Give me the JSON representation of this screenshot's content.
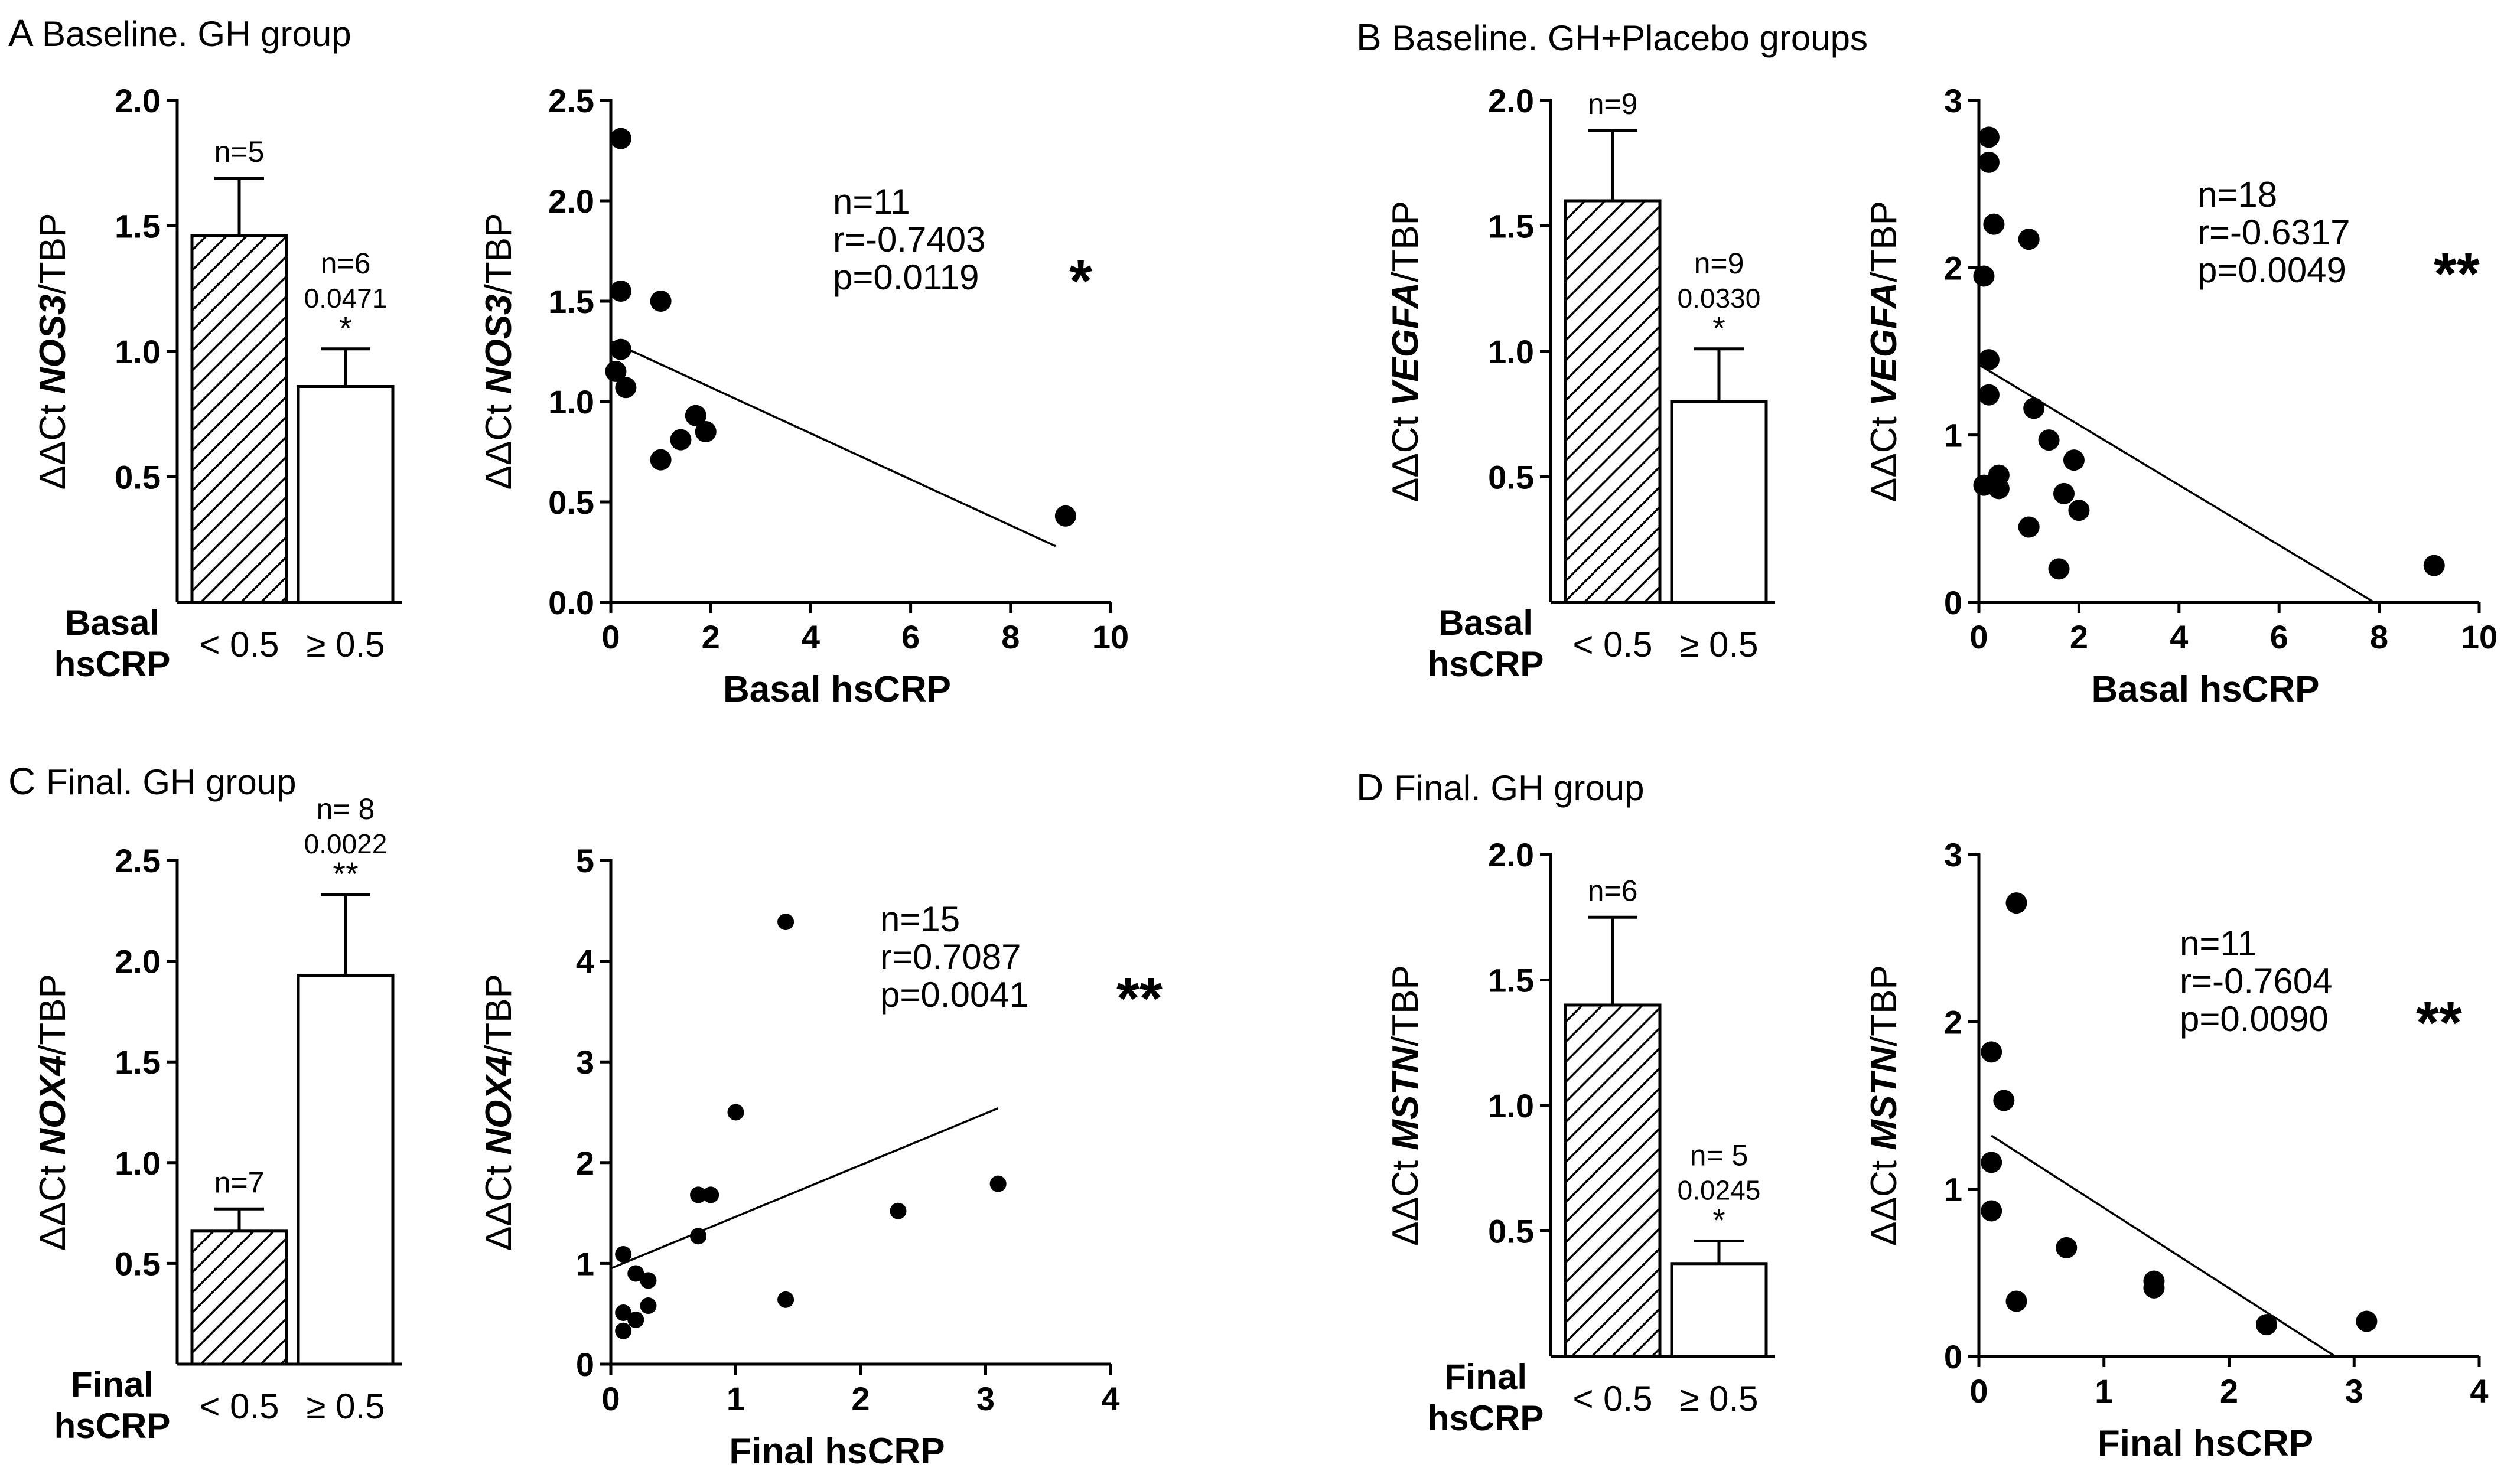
{
  "chart_data": [
    {
      "panel": "A",
      "heading": "Baseline. GH group",
      "gene": "NOS3",
      "bar": {
        "type": "bar",
        "ylabel_prefix": "ΔΔCt ",
        "ylabel_suffix": "/TBP",
        "xgroup_label": [
          "Basal",
          "hsCRP"
        ],
        "categories": [
          "< 0.5",
          "≥ 0.5"
        ],
        "values": [
          1.46,
          0.86
        ],
        "errors": [
          0.23,
          0.15
        ],
        "n_labels": [
          "n=5",
          "n=6"
        ],
        "p_label": "0.0471",
        "stars": "*",
        "ylim": [
          0,
          2.0
        ],
        "yticks": [
          "0.5",
          "1.0",
          "1.5",
          "2.0"
        ]
      },
      "scatter": {
        "type": "scatter",
        "ylabel_prefix": "ΔΔCt ",
        "ylabel_suffix": "/TBP",
        "xlabel": "Basal hsCRP",
        "xlim": [
          0,
          10
        ],
        "ylim": [
          0,
          2.5
        ],
        "xticks": [
          "0",
          "2",
          "4",
          "6",
          "8",
          "10"
        ],
        "yticks": [
          "0.0",
          "0.5",
          "1.0",
          "1.5",
          "2.0",
          "2.5"
        ],
        "points": [
          [
            0.2,
            2.31
          ],
          [
            0.2,
            1.55
          ],
          [
            0.2,
            1.26
          ],
          [
            0.1,
            1.15
          ],
          [
            0.3,
            1.07
          ],
          [
            1.0,
            1.5
          ],
          [
            1.0,
            0.71
          ],
          [
            1.4,
            0.81
          ],
          [
            1.7,
            0.93
          ],
          [
            1.9,
            0.85
          ],
          [
            9.1,
            0.43
          ]
        ],
        "fit": [
          [
            0.0,
            1.3
          ],
          [
            8.9,
            0.28
          ]
        ],
        "stats": [
          "n=11",
          "r=-0.7403",
          "p=0.0119"
        ],
        "stars": "*"
      }
    },
    {
      "panel": "B",
      "heading": "Baseline. GH+Placebo groups",
      "gene": "VEGFA",
      "bar": {
        "type": "bar",
        "ylabel_prefix": "ΔΔCt ",
        "ylabel_suffix": "/TBP",
        "xgroup_label": [
          "Basal",
          "hsCRP"
        ],
        "categories": [
          "< 0.5",
          "≥ 0.5"
        ],
        "values": [
          1.6,
          0.8
        ],
        "errors": [
          0.28,
          0.21
        ],
        "n_labels": [
          "n=9",
          "n=9"
        ],
        "p_label": "0.0330",
        "stars": "*",
        "ylim": [
          0,
          2.0
        ],
        "yticks": [
          "0.5",
          "1.0",
          "1.5",
          "2.0"
        ]
      },
      "scatter": {
        "type": "scatter",
        "ylabel_prefix": "ΔΔCt ",
        "ylabel_suffix": "/TBP",
        "xlabel": "Basal hsCRP",
        "xlim": [
          0,
          10
        ],
        "ylim": [
          0,
          3
        ],
        "xticks": [
          "0",
          "2",
          "4",
          "6",
          "8",
          "10"
        ],
        "yticks": [
          "0",
          "1",
          "2",
          "3"
        ],
        "points": [
          [
            0.2,
            2.78
          ],
          [
            0.2,
            2.63
          ],
          [
            0.3,
            2.26
          ],
          [
            1.0,
            2.17
          ],
          [
            0.1,
            1.95
          ],
          [
            0.2,
            1.45
          ],
          [
            0.2,
            1.24
          ],
          [
            1.1,
            1.16
          ],
          [
            1.4,
            0.97
          ],
          [
            1.9,
            0.85
          ],
          [
            0.4,
            0.76
          ],
          [
            0.1,
            0.7
          ],
          [
            0.4,
            0.68
          ],
          [
            1.7,
            0.65
          ],
          [
            2.0,
            0.55
          ],
          [
            1.0,
            0.45
          ],
          [
            1.6,
            0.2
          ],
          [
            9.1,
            0.22
          ]
        ],
        "fit": [
          [
            0.0,
            1.42
          ],
          [
            7.9,
            0.0
          ]
        ],
        "stats": [
          "n=18",
          "r=-0.6317",
          "p=0.0049"
        ],
        "stars": "**"
      }
    },
    {
      "panel": "C",
      "heading": "Final. GH group",
      "gene": "NOX4",
      "bar": {
        "type": "bar",
        "ylabel_prefix": "ΔΔCt ",
        "ylabel_suffix": "/TBP",
        "xgroup_label": [
          "Final",
          "hsCRP"
        ],
        "categories": [
          "< 0.5",
          "≥ 0.5"
        ],
        "values": [
          0.66,
          1.93
        ],
        "errors": [
          0.11,
          0.4
        ],
        "n_labels": [
          "n=7",
          "n= 8"
        ],
        "p_label": "0.0022",
        "stars": "**",
        "ylim": [
          0,
          2.5
        ],
        "yticks": [
          "0.5",
          "1.0",
          "1.5",
          "2.0",
          "2.5"
        ]
      },
      "scatter": {
        "type": "scatter",
        "ylabel_prefix": "ΔΔCt ",
        "ylabel_suffix": "/TBP",
        "xlabel": "Final hsCRP",
        "xlim": [
          0,
          4
        ],
        "ylim": [
          0,
          5
        ],
        "xticks": [
          "0",
          "1",
          "2",
          "3",
          "4"
        ],
        "yticks": [
          "0",
          "1",
          "2",
          "3",
          "4",
          "5"
        ],
        "points": [
          [
            1.4,
            4.39
          ],
          [
            1.0,
            2.5
          ],
          [
            0.7,
            1.68
          ],
          [
            0.8,
            1.68
          ],
          [
            0.7,
            1.27
          ],
          [
            2.3,
            1.52
          ],
          [
            3.1,
            1.79
          ],
          [
            0.1,
            1.09
          ],
          [
            0.2,
            0.9
          ],
          [
            0.3,
            0.83
          ],
          [
            1.4,
            0.64
          ],
          [
            0.3,
            0.58
          ],
          [
            0.1,
            0.51
          ],
          [
            0.2,
            0.44
          ],
          [
            0.1,
            0.33
          ]
        ],
        "fit": [
          [
            0.0,
            0.95
          ],
          [
            3.1,
            2.54
          ]
        ],
        "stats": [
          "n=15",
          "r=0.7087",
          "p=0.0041"
        ],
        "stars": "**"
      }
    },
    {
      "panel": "D",
      "heading": "Final. GH group",
      "gene": "MSTN",
      "bar": {
        "type": "bar",
        "ylabel_prefix": "ΔΔCt ",
        "ylabel_suffix": "/TBP",
        "xgroup_label": [
          "Final",
          "hsCRP"
        ],
        "categories": [
          "< 0.5",
          "≥ 0.5"
        ],
        "values": [
          1.4,
          0.37
        ],
        "errors": [
          0.35,
          0.09
        ],
        "n_labels": [
          "n=6",
          "n= 5"
        ],
        "p_label": "0.0245",
        "stars": "*",
        "ylim": [
          0,
          2.0
        ],
        "yticks": [
          "0.5",
          "1.0",
          "1.5",
          "2.0"
        ]
      },
      "scatter": {
        "type": "scatter",
        "ylabel_prefix": "ΔΔCt ",
        "ylabel_suffix": "/TBP",
        "xlabel": "Final hsCRP",
        "xlim": [
          0,
          4
        ],
        "ylim": [
          0,
          3
        ],
        "xticks": [
          "0",
          "1",
          "2",
          "3",
          "4"
        ],
        "yticks": [
          "0",
          "1",
          "2",
          "3"
        ],
        "points": [
          [
            0.3,
            2.71
          ],
          [
            0.1,
            1.82
          ],
          [
            0.2,
            1.53
          ],
          [
            0.1,
            1.16
          ],
          [
            0.1,
            0.87
          ],
          [
            0.7,
            0.65
          ],
          [
            1.4,
            0.45
          ],
          [
            1.4,
            0.41
          ],
          [
            0.3,
            0.33
          ],
          [
            2.3,
            0.19
          ],
          [
            3.1,
            0.21
          ]
        ],
        "fit": [
          [
            0.1,
            1.32
          ],
          [
            2.85,
            0.0
          ]
        ],
        "stats": [
          "n=11",
          "r=-0.7604",
          "p=0.0090"
        ],
        "stars": "**"
      }
    }
  ]
}
